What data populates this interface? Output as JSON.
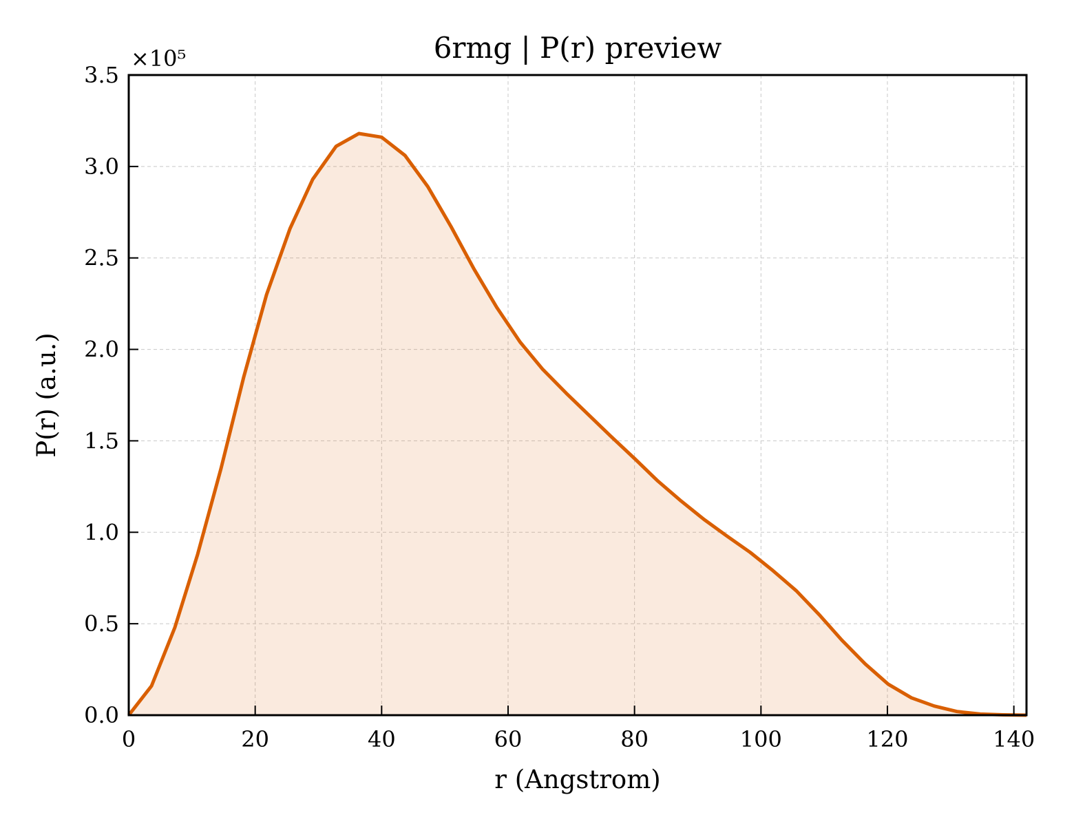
{
  "chart_data": {
    "type": "area",
    "title": "6rmg | P(r) preview",
    "xlabel": "r (Angstrom)",
    "ylabel": "P(r) (a.u.)",
    "y_multiplier_label": "×10⁵",
    "y_multiplier": 100000,
    "xlim": [
      0,
      142
    ],
    "ylim": [
      0,
      350000
    ],
    "x_ticks": [
      0,
      20,
      40,
      60,
      80,
      100,
      120,
      140
    ],
    "x_tick_labels": [
      "0",
      "20",
      "40",
      "60",
      "80",
      "100",
      "120",
      "140"
    ],
    "y_ticks": [
      0,
      50000,
      100000,
      150000,
      200000,
      250000,
      300000,
      350000
    ],
    "y_tick_labels": [
      "0.0",
      "0.5",
      "1.0",
      "1.5",
      "2.0",
      "2.5",
      "3.0",
      "3.5"
    ],
    "grid": true,
    "line_color": "#d95f02",
    "fill_color": "#d95f02",
    "series": [
      {
        "x": [
          0,
          3.6,
          7.3,
          10.9,
          14.6,
          18.2,
          21.8,
          25.5,
          29.1,
          32.8,
          36.4,
          40.0,
          43.7,
          47.3,
          51.0,
          54.6,
          58.2,
          61.9,
          65.5,
          69.2,
          72.8,
          76.4,
          80.1,
          83.7,
          87.4,
          91.0,
          94.6,
          98.3,
          101.9,
          105.6,
          109.2,
          112.8,
          116.5,
          120.1,
          123.8,
          127.4,
          131.0,
          134.7,
          138.3,
          142.0
        ],
        "y": [
          0,
          16000,
          48000,
          88000,
          135000,
          185000,
          230000,
          266000,
          293000,
          311000,
          318000,
          316000,
          306000,
          289000,
          267000,
          244000,
          223000,
          204000,
          189000,
          176000,
          164000,
          152000,
          140000,
          128000,
          117000,
          107000,
          98000,
          89000,
          79000,
          68000,
          55000,
          41000,
          28000,
          17000,
          9500,
          5000,
          2000,
          600,
          200,
          0
        ]
      }
    ]
  }
}
